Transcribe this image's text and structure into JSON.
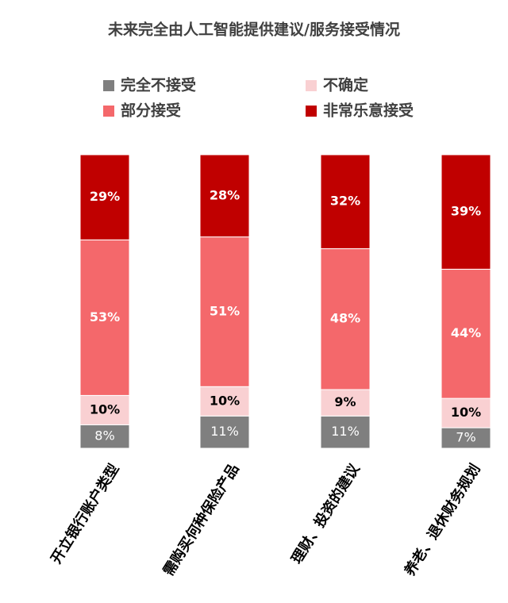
{
  "chart_data": {
    "type": "stacked_bar",
    "title": "未来完全由人工智能提供建议/服务接受情况",
    "categories": [
      "开立银行账户类型",
      "需购买何种保险产品",
      "理财、投资的建议",
      "养老、退休财务规划"
    ],
    "series": [
      {
        "name": "完全不接受",
        "color": "#7f7f7f",
        "values": [
          8,
          11,
          11,
          7
        ],
        "value_labels": [
          "8%",
          "11%",
          "11%",
          "7%"
        ]
      },
      {
        "name": "不确定",
        "color": "#f9d0d2",
        "values": [
          10,
          10,
          9,
          10
        ],
        "value_labels": [
          "10%",
          "10%",
          "9%",
          "10%"
        ]
      },
      {
        "name": "部分接受",
        "color": "#f4686b",
        "values": [
          53,
          51,
          48,
          44
        ],
        "value_labels": [
          "53%",
          "51%",
          "48%",
          "44%"
        ]
      },
      {
        "name": "非常乐意接受",
        "color": "#c00000",
        "values": [
          29,
          28,
          32,
          39
        ],
        "value_labels": [
          "29%",
          "28%",
          "32%",
          "39%"
        ]
      }
    ]
  }
}
